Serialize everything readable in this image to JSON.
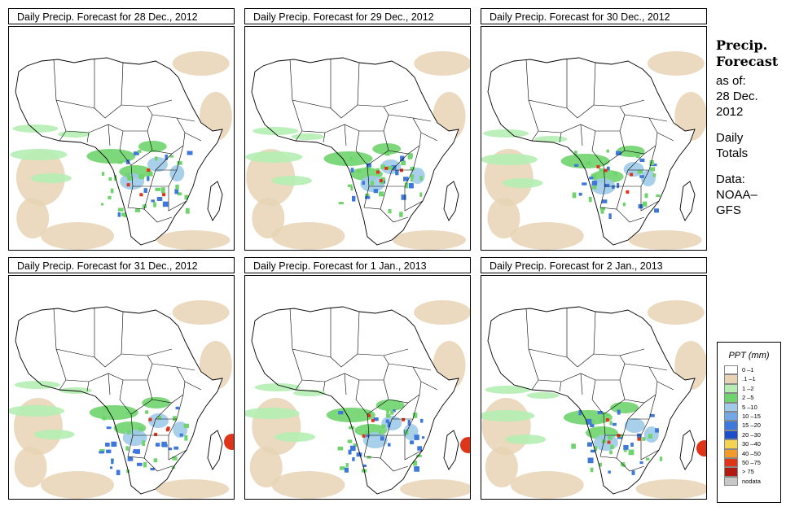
{
  "panels": [
    {
      "title": "Daily Precip. Forecast for  28 Dec., 2012"
    },
    {
      "title": "Daily Precip. Forecast for  29 Dec., 2012"
    },
    {
      "title": "Daily Precip. Forecast for  30 Dec., 2012"
    },
    {
      "title": "Daily Precip. Forecast for  31 Dec., 2012"
    },
    {
      "title": "Daily Precip. Forecast for  1 Jan., 2013"
    },
    {
      "title": "Daily Precip. Forecast for  2 Jan., 2013"
    }
  ],
  "side": {
    "heading1": "Precip.",
    "heading2": "Forecast",
    "asof": "as of:",
    "date1": "28 Dec.",
    "date2": "2012",
    "daily": "Daily",
    "totals": "Totals",
    "data": "Data:",
    "source1": "NOAA–",
    "source2": "GFS"
  },
  "legend": {
    "title": "PPT (mm)",
    "items": [
      {
        "label": "0 –1",
        "color": "#ffffff"
      },
      {
        "label": ".1 –1",
        "color": "#e8d4b4"
      },
      {
        "label": "1 –2",
        "color": "#b5eeb3"
      },
      {
        "label": "2 –5",
        "color": "#6fd46d"
      },
      {
        "label": "5 –10",
        "color": "#9fcbe8"
      },
      {
        "label": "10 –15",
        "color": "#72a8e6"
      },
      {
        "label": "15 –20",
        "color": "#3e78db"
      },
      {
        "label": "20 –30",
        "color": "#1d4fc8"
      },
      {
        "label": "30 –40",
        "color": "#f6d453"
      },
      {
        "label": "40 –50",
        "color": "#f29a2a"
      },
      {
        "label": "50 –75",
        "color": "#e03418"
      },
      {
        "label": "> 75",
        "color": "#b01a10"
      },
      {
        "label": "nodata",
        "color": "#c8c8c8"
      }
    ]
  },
  "colors": {
    "sand": "#e8d4b4",
    "light_green": "#b5eeb3",
    "green": "#6fd46d",
    "light_blue": "#9fcbe8",
    "blue": "#3e78db",
    "red": "#e03418"
  }
}
